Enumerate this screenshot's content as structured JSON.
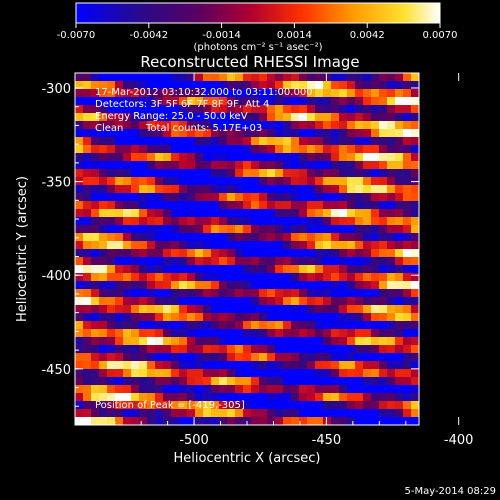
{
  "colorbar": {
    "ticks": [
      "-0.0070",
      "-0.0042",
      "-0.0014",
      "0.0014",
      "0.0042",
      "0.0070"
    ],
    "units": "(photons cm⁻² s⁻¹ asec⁻²)",
    "range": [
      -0.007,
      0.007
    ]
  },
  "chart_data": {
    "type": "heatmap",
    "title": "Reconstructed RHESSI Image",
    "xlabel": "Heliocentric X (arcsec)",
    "ylabel": "Heliocentric Y (arcsec)",
    "xlim": [
      -545,
      -415
    ],
    "ylim": [
      -480,
      -292
    ],
    "x_ticks": [
      "-500",
      "-450",
      "-400"
    ],
    "y_ticks": [
      "-300",
      "-350",
      "-400",
      "-450"
    ],
    "x_tick_values": [
      -500,
      -450,
      -400
    ],
    "y_tick_values": [
      -300,
      -350,
      -400,
      -450
    ],
    "colormap": [
      "#0000ff",
      "#2a0a8a",
      "#5a0060",
      "#b00030",
      "#ff3000",
      "#ff9a00",
      "#ffe030",
      "#ffffff"
    ],
    "annotations": {
      "time": "17-Mar-2012 03:10:32.000 to 03:11:00.000",
      "detectors": "Detectors: 3F 5F 6F 7F 8F 9F, Att 4",
      "energy": "Energy Range: 25.0 - 50.0 keV",
      "method": "Clean",
      "counts": "Total counts: 5.17E+03",
      "peak": "Position of Peak = [-419,-305]"
    }
  },
  "footer": {
    "date": "5-May-2014 08:29"
  }
}
